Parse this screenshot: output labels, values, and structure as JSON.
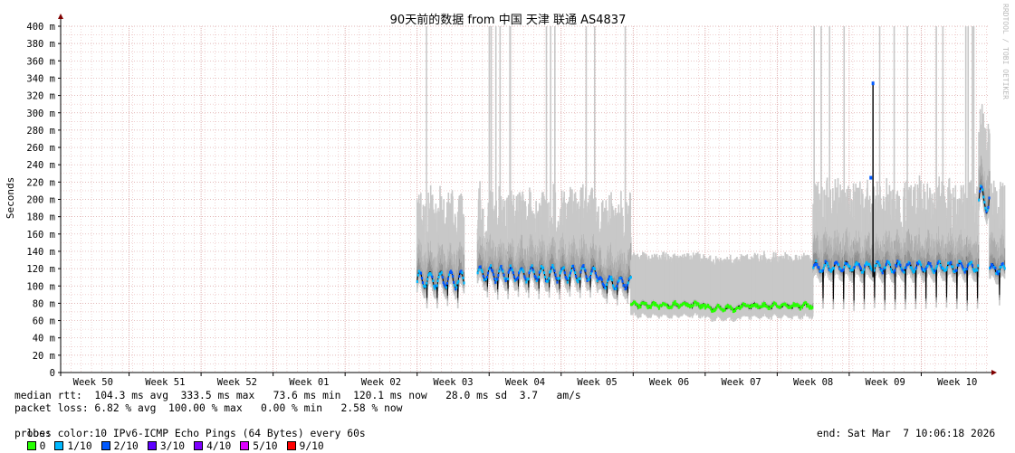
{
  "chart_data": {
    "type": "area",
    "title": "90天前的数据 from 中国 天津 联通 AS4837",
    "ylabel": "Seconds",
    "watermark": "RRDTOOL / TOBI OETIKER",
    "ylim": [
      0,
      0.4
    ],
    "y_ticks": [
      {
        "value": 0,
        "label": "0"
      },
      {
        "value": 0.02,
        "label": "20 m"
      },
      {
        "value": 0.04,
        "label": "40 m"
      },
      {
        "value": 0.06,
        "label": "60 m"
      },
      {
        "value": 0.08,
        "label": "80 m"
      },
      {
        "value": 0.1,
        "label": "100 m"
      },
      {
        "value": 0.12,
        "label": "120 m"
      },
      {
        "value": 0.14,
        "label": "140 m"
      },
      {
        "value": 0.16,
        "label": "160 m"
      },
      {
        "value": 0.18,
        "label": "180 m"
      },
      {
        "value": 0.2,
        "label": "200 m"
      },
      {
        "value": 0.22,
        "label": "220 m"
      },
      {
        "value": 0.24,
        "label": "240 m"
      },
      {
        "value": 0.26,
        "label": "260 m"
      },
      {
        "value": 0.28,
        "label": "280 m"
      },
      {
        "value": 0.3,
        "label": "300 m"
      },
      {
        "value": 0.32,
        "label": "320 m"
      },
      {
        "value": 0.34,
        "label": "340 m"
      },
      {
        "value": 0.36,
        "label": "360 m"
      },
      {
        "value": 0.38,
        "label": "380 m"
      },
      {
        "value": 0.4,
        "label": "400 m"
      }
    ],
    "x_labels": [
      "Week 50",
      "Week 51",
      "Week 52",
      "Week 01",
      "Week 02",
      "Week 03",
      "Week 04",
      "Week 05",
      "Week 06",
      "Week 07",
      "Week 08",
      "Week 09",
      "Week 10"
    ],
    "series": [
      {
        "name": "median rtt",
        "segments": [
          {
            "start_week": 4.5,
            "end_week": 5.15,
            "base": 0.107,
            "amp": 0.009,
            "dip": 0.088
          },
          {
            "start_week": 5.34,
            "end_week": 7.0,
            "base": 0.114,
            "amp": 0.008,
            "dip": 0.098
          },
          {
            "start_week": 7.0,
            "end_week": 7.47,
            "base": 0.104,
            "amp": 0.006,
            "dip": 0.09
          },
          {
            "start_week": 7.47,
            "end_week": 8.5,
            "base": 0.078,
            "amp": 0.002,
            "dip": 0.076
          },
          {
            "start_week": 8.5,
            "end_week": 9.0,
            "base": 0.074,
            "amp": 0.002,
            "dip": 0.073
          },
          {
            "start_week": 9.0,
            "end_week": 10.0,
            "base": 0.077,
            "amp": 0.002,
            "dip": 0.075
          },
          {
            "start_week": 10.0,
            "end_week": 12.3,
            "base": 0.122,
            "amp": 0.005,
            "dip": 0.085
          },
          {
            "start_week": 12.3,
            "end_week": 12.45,
            "base": 0.2,
            "amp": 0.015,
            "dip": 0.19
          },
          {
            "start_week": 12.45,
            "end_week": 12.66,
            "base": 0.12,
            "amp": 0.005,
            "dip": 0.09
          }
        ]
      },
      {
        "name": "rtt spikes",
        "points": [
          {
            "week": 10.83,
            "value": 0.334
          },
          {
            "week": 10.8,
            "value": 0.225
          }
        ]
      }
    ],
    "loss_colors": [
      {
        "label": "0",
        "color": "#26ff00"
      },
      {
        "label": "1/10",
        "color": "#00b8ff"
      },
      {
        "label": "2/10",
        "color": "#0059ff"
      },
      {
        "label": "3/10",
        "color": "#5e00ff"
      },
      {
        "label": "4/10",
        "color": "#7e00ff"
      },
      {
        "label": "5/10",
        "color": "#dd00ff"
      },
      {
        "label": "9/10",
        "color": "#ff0000"
      }
    ],
    "colors": {
      "grid_minor": "#e8b7b7",
      "grid_major": "#d9a0a0",
      "axis": "#000000",
      "arrow": "#800000",
      "smoke_outer": "#c8c8c8",
      "smoke_mid": "#a0a0a0",
      "smoke_inner": "#6e6e6e",
      "median_line": "#000000"
    }
  },
  "stats": {
    "rtt_line": "median rtt:  104.3 ms avg  333.5 ms max   73.6 ms min  120.1 ms now   28.0 ms sd  3.7   am/s",
    "loss_line": "packet loss: 6.82 % avg  100.00 % max   0.00 % min   2.58 % now",
    "loss_label": "loss color:",
    "probe_line": "probe:       10 IPv6-ICMP Echo Pings (64 Bytes) every 60s",
    "end_line": "end: Sat Mar  7 10:06:18 2026"
  }
}
